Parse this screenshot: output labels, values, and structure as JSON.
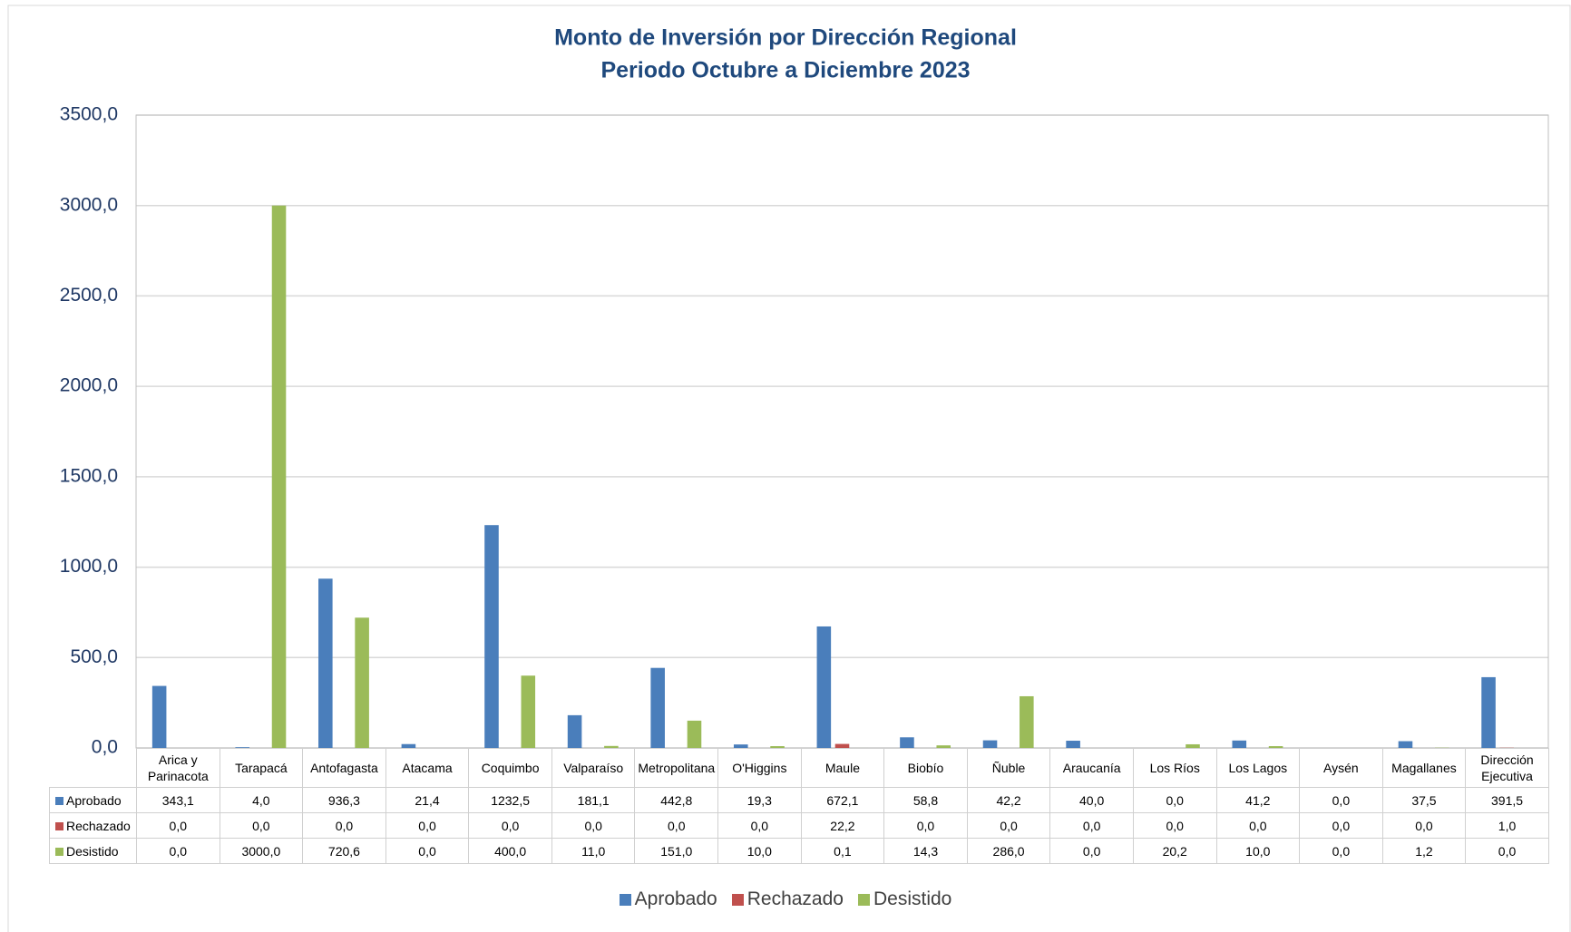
{
  "chart_data": {
    "type": "bar",
    "title": "Monto de Inversión por Dirección Regional",
    "subtitle": "Periodo Octubre a Diciembre 2023",
    "categories": [
      "Arica y Parinacota",
      "Tarapacá",
      "Antofagasta",
      "Atacama",
      "Coquimbo",
      "Valparaíso",
      "Metropolitana",
      "O'Higgins",
      "Maule",
      "Biobío",
      "Ñuble",
      "Araucanía",
      "Los Ríos",
      "Los Lagos",
      "Aysén",
      "Magallanes",
      "Dirección Ejecutiva"
    ],
    "series": [
      {
        "name": "Aprobado",
        "color": "#4a7ebb",
        "values": [
          343.1,
          4,
          936.3,
          21.4,
          1232.5,
          181.1,
          442.8,
          19.3,
          672.1,
          58.8,
          42.2,
          40,
          0,
          41.2,
          0,
          37.5,
          391.5
        ],
        "value_labels": [
          "343,1",
          "4,0",
          "936,3",
          "21,4",
          "1232,5",
          "181,1",
          "442,8",
          "19,3",
          "672,1",
          "58,8",
          "42,2",
          "40,0",
          "0,0",
          "41,2",
          "0,0",
          "37,5",
          "391,5"
        ]
      },
      {
        "name": "Rechazado",
        "color": "#c0504d",
        "values": [
          0,
          0,
          0,
          0,
          0,
          0,
          0,
          0,
          22.2,
          0,
          0,
          0,
          0,
          0,
          0,
          0,
          1
        ],
        "value_labels": [
          "0,0",
          "0,0",
          "0,0",
          "0,0",
          "0,0",
          "0,0",
          "0,0",
          "0,0",
          "22,2",
          "0,0",
          "0,0",
          "0,0",
          "0,0",
          "0,0",
          "0,0",
          "0,0",
          "1,0"
        ]
      },
      {
        "name": "Desistido",
        "color": "#9bbb59",
        "values": [
          0,
          3000,
          720.6,
          0,
          400,
          11,
          151,
          10,
          0.1,
          14.3,
          286,
          0,
          20.2,
          10,
          0,
          1.2,
          0
        ],
        "value_labels": [
          "0,0",
          "3000,0",
          "720,6",
          "0,0",
          "400,0",
          "11,0",
          "151,0",
          "10,0",
          "0,1",
          "14,3",
          "286,0",
          "0,0",
          "20,2",
          "10,0",
          "0,0",
          "1,2",
          "0,0"
        ]
      }
    ],
    "ylim": [
      0,
      3500
    ],
    "yticks": [
      {
        "value": 0,
        "label": "0,0"
      },
      {
        "value": 500,
        "label": "500,0"
      },
      {
        "value": 1000,
        "label": "1000,0"
      },
      {
        "value": 1500,
        "label": "1500,0"
      },
      {
        "value": 2000,
        "label": "2000,0"
      },
      {
        "value": 2500,
        "label": "2500,0"
      },
      {
        "value": 3000,
        "label": "3000,0"
      },
      {
        "value": 3500,
        "label": "3500,0"
      }
    ],
    "grid": true
  }
}
